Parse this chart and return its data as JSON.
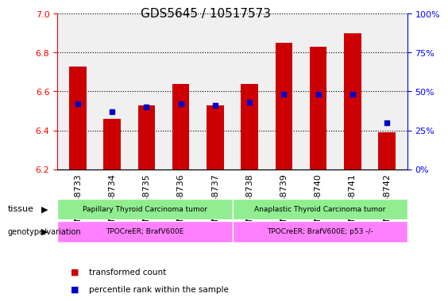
{
  "title": "GDS5645 / 10517573",
  "samples": [
    "GSM1348733",
    "GSM1348734",
    "GSM1348735",
    "GSM1348736",
    "GSM1348737",
    "GSM1348738",
    "GSM1348739",
    "GSM1348740",
    "GSM1348741",
    "GSM1348742"
  ],
  "transformed_counts": [
    6.73,
    6.46,
    6.53,
    6.64,
    6.53,
    6.64,
    6.85,
    6.83,
    6.9,
    6.39
  ],
  "percentile_ranks": [
    42,
    37,
    40,
    42,
    41,
    43,
    48,
    48,
    48,
    30
  ],
  "ylim_left": [
    6.2,
    7.0
  ],
  "ylim_right": [
    0,
    100
  ],
  "yticks_left": [
    6.2,
    6.4,
    6.6,
    6.8,
    7.0
  ],
  "yticks_right": [
    0,
    25,
    50,
    75,
    100
  ],
  "bar_color": "#cc0000",
  "dot_color": "#0000cc",
  "bar_bottom": 6.2,
  "tissue_groups": [
    {
      "label": "Papillary Thyroid Carcinoma tumor",
      "start": 0,
      "end": 5,
      "color": "#90ee90"
    },
    {
      "label": "Anaplastic Thyroid Carcinoma tumor",
      "start": 5,
      "end": 10,
      "color": "#90ee90"
    }
  ],
  "genotype_groups": [
    {
      "label": "TPOCreER; BrafV600E",
      "start": 0,
      "end": 5,
      "color": "#ff80ff"
    },
    {
      "label": "TPOCreER; BrafV600E; p53 -/-",
      "start": 5,
      "end": 10,
      "color": "#ff80ff"
    }
  ],
  "tissue_label": "tissue",
  "genotype_label": "genotype/variation",
  "legend_items": [
    {
      "label": "transformed count",
      "color": "#cc0000",
      "marker": "s"
    },
    {
      "label": "percentile rank within the sample",
      "color": "#0000cc",
      "marker": "s"
    }
  ],
  "grid_color": "#000000",
  "background_color": "#ffffff",
  "plot_bg_color": "#f0f0f0",
  "title_fontsize": 11,
  "tick_fontsize": 8,
  "label_fontsize": 9
}
